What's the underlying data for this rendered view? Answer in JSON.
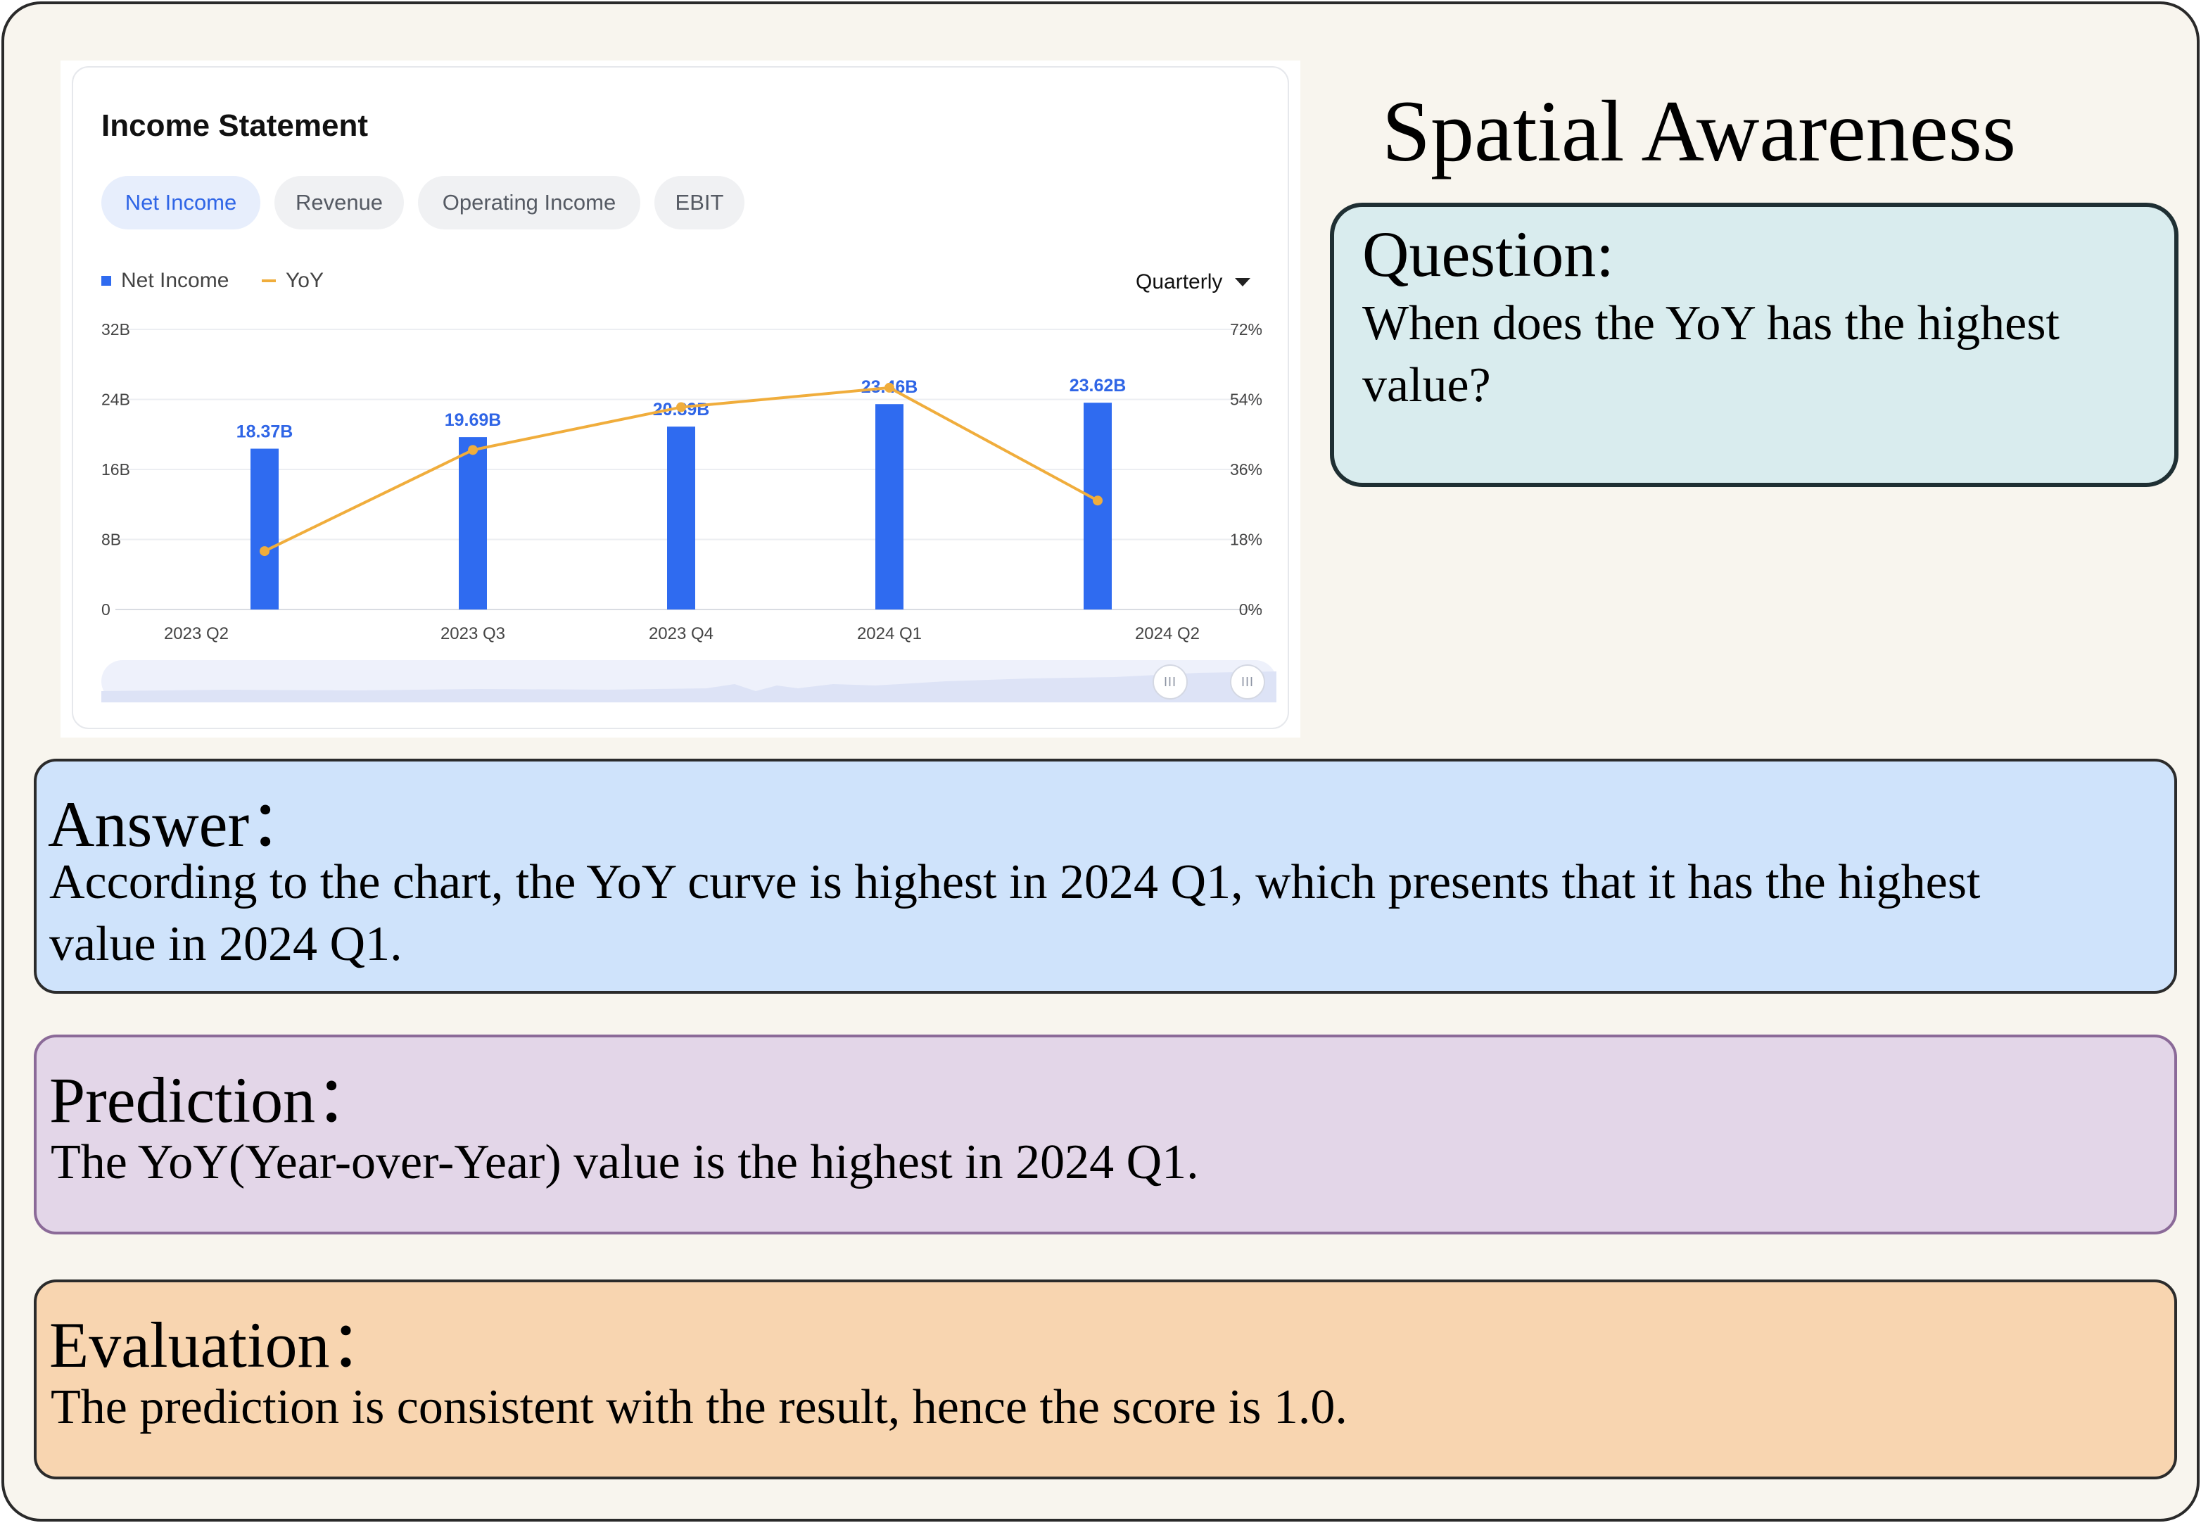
{
  "page": {
    "title": "Spatial Awareness"
  },
  "screenshot": {
    "card_title": "Income Statement",
    "tabs": [
      {
        "label": "Net Income",
        "active": true
      },
      {
        "label": "Revenue",
        "active": false
      },
      {
        "label": "Operating Income",
        "active": false
      },
      {
        "label": "EBIT",
        "active": false
      }
    ],
    "legend": {
      "net_income": "Net Income",
      "yoy": "YoY"
    },
    "period_select": "Quarterly",
    "scroller_handle_glyph": "III",
    "colors": {
      "bar": "#2f6bf0",
      "line": "#f0ad3c",
      "active_tab": "#2f65e6"
    }
  },
  "chart_data": {
    "type": "bar",
    "categories": [
      "2023 Q2",
      "2023 Q3",
      "2023 Q4",
      "2024 Q1",
      "2024 Q2"
    ],
    "series": [
      {
        "name": "Net Income",
        "type": "bar",
        "values": [
          18.37,
          19.69,
          20.89,
          23.46,
          23.62
        ],
        "labels": [
          "18.37B",
          "19.69B",
          "20.89B",
          "23.46B",
          "23.62B"
        ]
      },
      {
        "name": "YoY",
        "type": "line",
        "axis": "right",
        "values": [
          15,
          41,
          52,
          57,
          28
        ]
      }
    ],
    "y_left": {
      "ticks": [
        "0",
        "8B",
        "16B",
        "24B",
        "32B"
      ],
      "tick_values": [
        0,
        8,
        16,
        24,
        32
      ],
      "ylim": [
        0,
        32
      ]
    },
    "y_right": {
      "ticks": [
        "0%",
        "18%",
        "36%",
        "54%",
        "72%"
      ],
      "tick_values": [
        0,
        18,
        36,
        54,
        72
      ],
      "ylim": [
        0,
        72
      ]
    },
    "grid": true,
    "legend_position": "top-left"
  },
  "question": {
    "heading": "Question:",
    "lines": [
      "When does the YoY has the highest",
      "value?"
    ]
  },
  "answer": {
    "heading": "Answer：",
    "lines": [
      "According to the chart, the YoY curve is highest in 2024 Q1, which presents that it has the highest",
      "value in 2024 Q1."
    ]
  },
  "prediction": {
    "heading": "Prediction：",
    "text": "The YoY(Year-over-Year) value is the highest in 2024 Q1."
  },
  "evaluation": {
    "heading": "Evaluation：",
    "text": "The prediction is consistent with the result, hence the score is 1.0."
  }
}
